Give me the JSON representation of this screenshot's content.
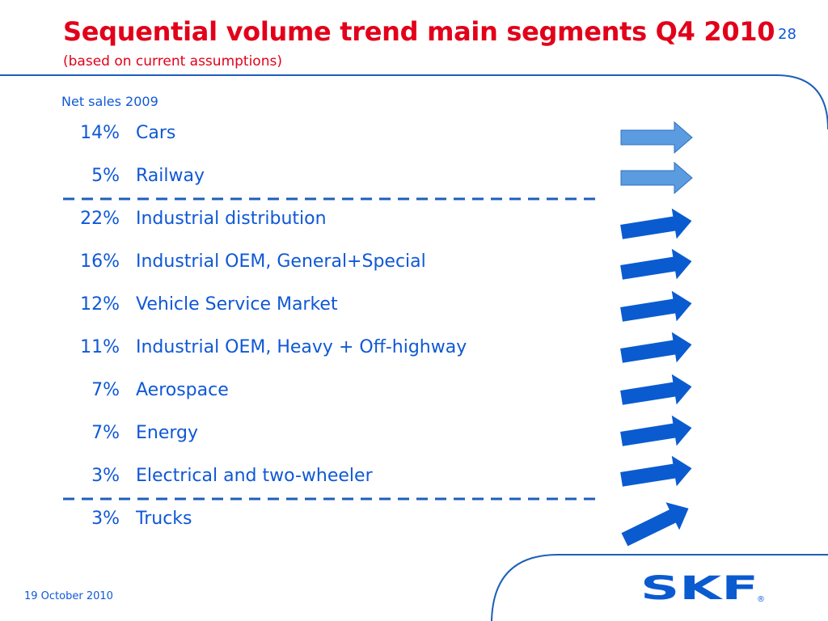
{
  "slide": {
    "title": "Sequential volume trend main segments Q4 2010",
    "subtitle": "(based on current assumptions)",
    "page_number": "28",
    "column_header": "Net sales 2009",
    "footer_date": "19 October 2010"
  },
  "segments": [
    {
      "pct": "14%",
      "name": "Cars",
      "trend": "flat"
    },
    {
      "pct": "5%",
      "name": "Railway",
      "trend": "flat"
    },
    {
      "pct": "22%",
      "name": "Industrial distribution",
      "trend": "up"
    },
    {
      "pct": "16%",
      "name": "Industrial OEM, General+Special",
      "trend": "up"
    },
    {
      "pct": "12%",
      "name": "Vehicle Service Market",
      "trend": "up"
    },
    {
      "pct": "11%",
      "name": "Industrial OEM, Heavy + Off-highway",
      "trend": "up"
    },
    {
      "pct": "7%",
      "name": "Aerospace",
      "trend": "up"
    },
    {
      "pct": "7%",
      "name": "Energy",
      "trend": "up"
    },
    {
      "pct": "3%",
      "name": "Electrical and two-wheeler",
      "trend": "up"
    },
    {
      "pct": "3%",
      "name": "Trucks",
      "trend": "strong-up"
    }
  ],
  "logo": {
    "text": "SKF",
    "registered": "®"
  },
  "colors": {
    "title": "#e2001a",
    "text": "#0f58d6",
    "arrow_flat": "#5b9bdf",
    "arrow_up": "#0a5bd0",
    "line": "#1d5fb8"
  }
}
